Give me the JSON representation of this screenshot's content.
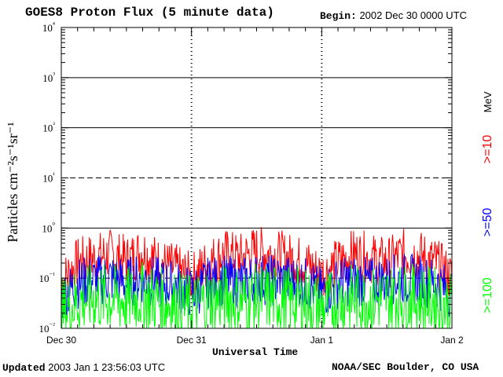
{
  "header": {
    "title": "GOES8 Proton Flux (5 minute data)",
    "begin_label": "Begin:",
    "begin_value": "2002 Dec 30 0000 UTC"
  },
  "footer": {
    "updated_label": "Updated",
    "updated_value": "2003 Jan  1 23:56:03 UTC",
    "credit": "NOAA/SEC Boulder, CO USA"
  },
  "colors": {
    "ge10": "#ff0000",
    "ge50": "#0000ff",
    "ge100": "#00ff00"
  },
  "chart_data": {
    "type": "line",
    "title": "GOES8 Proton Flux (5 minute data)",
    "xlabel": "Universal Time",
    "ylabel": "Particles cm⁻²s⁻¹sr⁻¹",
    "yscale": "log",
    "ylim": [
      0.01,
      10000
    ],
    "ytick_labels": [
      "10⁻²",
      "10⁻¹",
      "10⁰",
      "10¹",
      "10²",
      "10³",
      "10⁴"
    ],
    "x_tick_labels": [
      "Dec 30",
      "Dec 31",
      "Jan 1",
      "Jan 2"
    ],
    "xlim_days": [
      0,
      3
    ],
    "grid": true,
    "right_labels": [
      {
        "text": ">=10",
        "color": "#ff0000"
      },
      {
        "text": "MeV",
        "color": "#000000"
      },
      {
        "text": ">=50",
        "color": "#0000ff"
      },
      {
        "text": ">=100",
        "color": "#00ff00"
      }
    ],
    "series": [
      {
        "name": ">=10 MeV",
        "color": "#ff0000",
        "x": [
          0,
          0.125,
          0.25,
          0.375,
          0.5,
          0.625,
          0.75,
          0.875,
          1,
          1.125,
          1.25,
          1.375,
          1.5,
          1.625,
          1.75,
          1.875,
          2,
          2.125,
          2.25,
          2.375,
          2.5,
          2.625,
          2.75,
          2.875,
          3
        ],
        "y": [
          0.08,
          0.2,
          0.25,
          0.3,
          0.22,
          0.35,
          0.2,
          0.15,
          0.1,
          0.2,
          0.3,
          0.25,
          0.35,
          0.3,
          0.25,
          0.2,
          0.12,
          0.2,
          0.3,
          0.25,
          0.2,
          0.3,
          0.28,
          0.2,
          0.1
        ]
      },
      {
        "name": ">=50 MeV",
        "color": "#0000ff",
        "x": [
          0,
          0.125,
          0.25,
          0.375,
          0.5,
          0.625,
          0.75,
          0.875,
          1,
          1.125,
          1.25,
          1.375,
          1.5,
          1.625,
          1.75,
          1.875,
          2,
          2.125,
          2.25,
          2.375,
          2.5,
          2.625,
          2.75,
          2.875,
          3
        ],
        "y": [
          0.04,
          0.08,
          0.09,
          0.1,
          0.08,
          0.1,
          0.08,
          0.07,
          0.05,
          0.08,
          0.09,
          0.08,
          0.1,
          0.09,
          0.09,
          0.08,
          0.05,
          0.08,
          0.09,
          0.08,
          0.09,
          0.1,
          0.09,
          0.08,
          0.05
        ]
      },
      {
        "name": ">=100 MeV",
        "color": "#00ff00",
        "x": [
          0,
          0.125,
          0.25,
          0.375,
          0.5,
          0.625,
          0.75,
          0.875,
          1,
          1.125,
          1.25,
          1.375,
          1.5,
          1.625,
          1.75,
          1.875,
          2,
          2.125,
          2.25,
          2.375,
          2.5,
          2.625,
          2.75,
          2.875,
          3
        ],
        "y": [
          0.02,
          0.035,
          0.04,
          0.04,
          0.035,
          0.045,
          0.035,
          0.03,
          0.025,
          0.035,
          0.04,
          0.035,
          0.04,
          0.04,
          0.035,
          0.035,
          0.025,
          0.035,
          0.04,
          0.035,
          0.04,
          0.04,
          0.04,
          0.035,
          0.025
        ]
      }
    ]
  }
}
